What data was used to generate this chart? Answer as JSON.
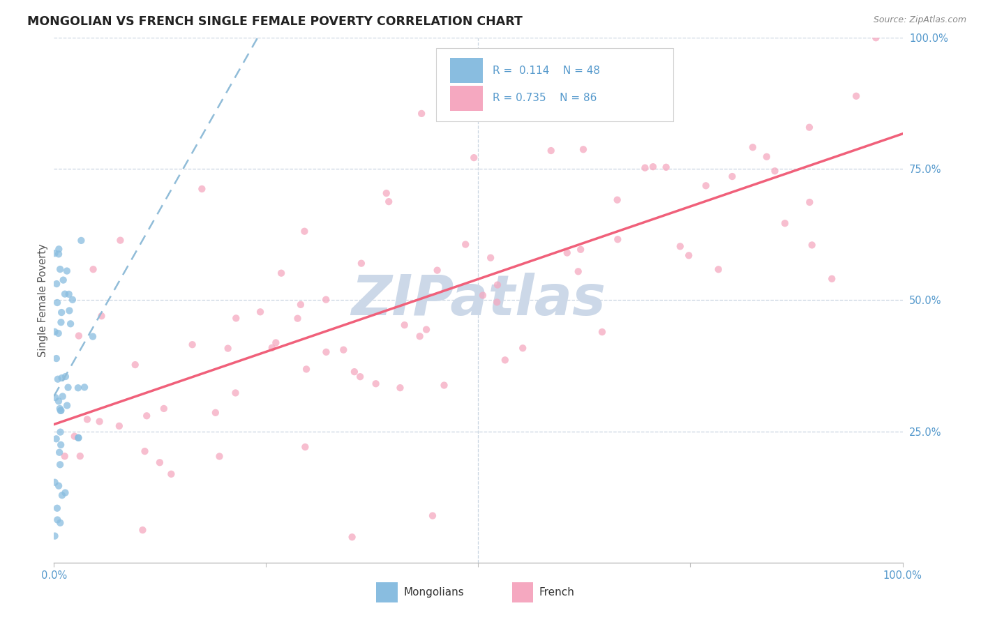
{
  "title": "MONGOLIAN VS FRENCH SINGLE FEMALE POVERTY CORRELATION CHART",
  "source": "Source: ZipAtlas.com",
  "ylabel": "Single Female Poverty",
  "xlim": [
    0,
    1
  ],
  "ylim": [
    0,
    1
  ],
  "mongolian_R": 0.114,
  "mongolian_N": 48,
  "french_R": 0.735,
  "french_N": 86,
  "mongolian_color": "#89bde0",
  "french_color": "#f5a8c0",
  "mongolian_line_color": "#90bcd8",
  "french_line_color": "#f0607a",
  "watermark_color": "#ccd8e8",
  "grid_color": "#c8d4e0",
  "tick_color": "#5599cc",
  "title_color": "#222222",
  "source_color": "#888888",
  "ylabel_color": "#555555"
}
